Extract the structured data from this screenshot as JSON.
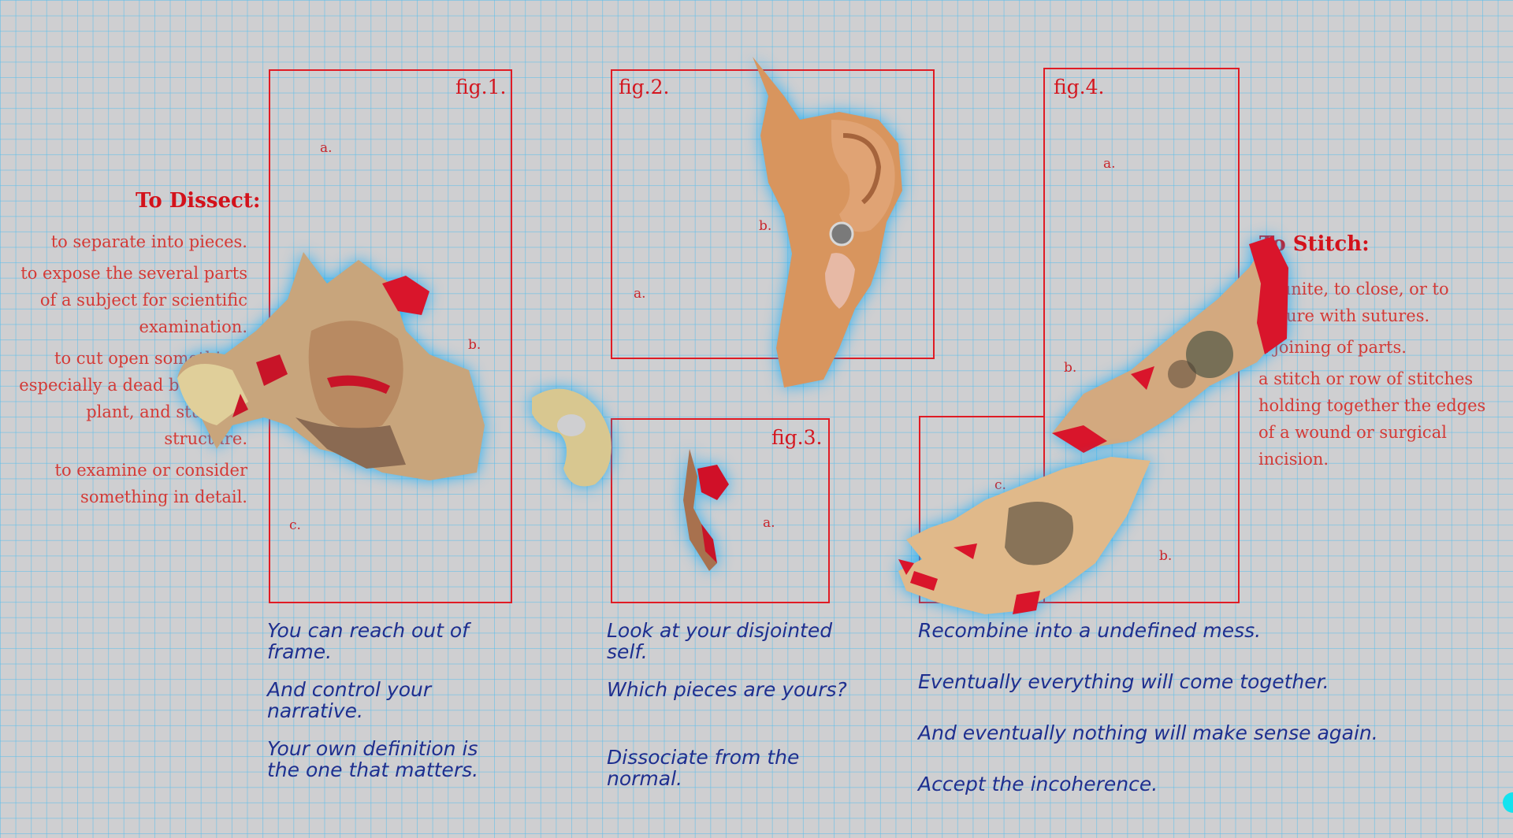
{
  "figures": {
    "fig1": "fig.1.",
    "fig2": "fig.2.",
    "fig3": "fig.3.",
    "fig4": "fig.4."
  },
  "markers": {
    "a": "a.",
    "b": "b.",
    "c": "c."
  },
  "dissect": {
    "title": "To Dissect:",
    "definitions": [
      "to separate into pieces.",
      "to expose the several parts of a subject for scientific examination.",
      "to cut open something, especially a dead body or a plant, and study its structure.",
      "to examine or consider something in detail."
    ]
  },
  "stitch": {
    "title": "To Stitch:",
    "definitions": [
      "to unite, to close, or to secure with sutures.",
      "a joining of parts.",
      "a stitch or row of stitches holding together the edges of a wound or surgical incision."
    ]
  },
  "quotes": {
    "col1": [
      "You can reach out of frame.",
      "And control your narrative.",
      "Your own definition is the one that matters."
    ],
    "col2": [
      "Look at your disjointed self.",
      "Which pieces are yours?",
      "Dissociate from the normal."
    ],
    "col3": [
      "Recombine into a undefined mess.",
      "Eventually everything will come together.",
      "And eventually nothing will make sense again.",
      "Accept the incoherence."
    ]
  },
  "colors": {
    "accent_red": "#e01b24",
    "quote_blue": "#1e2f8f",
    "grid_blue": "#5abeeb",
    "glow_cyan": "#13e3ef"
  },
  "scans": [
    "torso-scan",
    "pelvis-bone-scan",
    "ear-scan",
    "small-tissue-scan",
    "forearm-scan",
    "hand-scan"
  ]
}
